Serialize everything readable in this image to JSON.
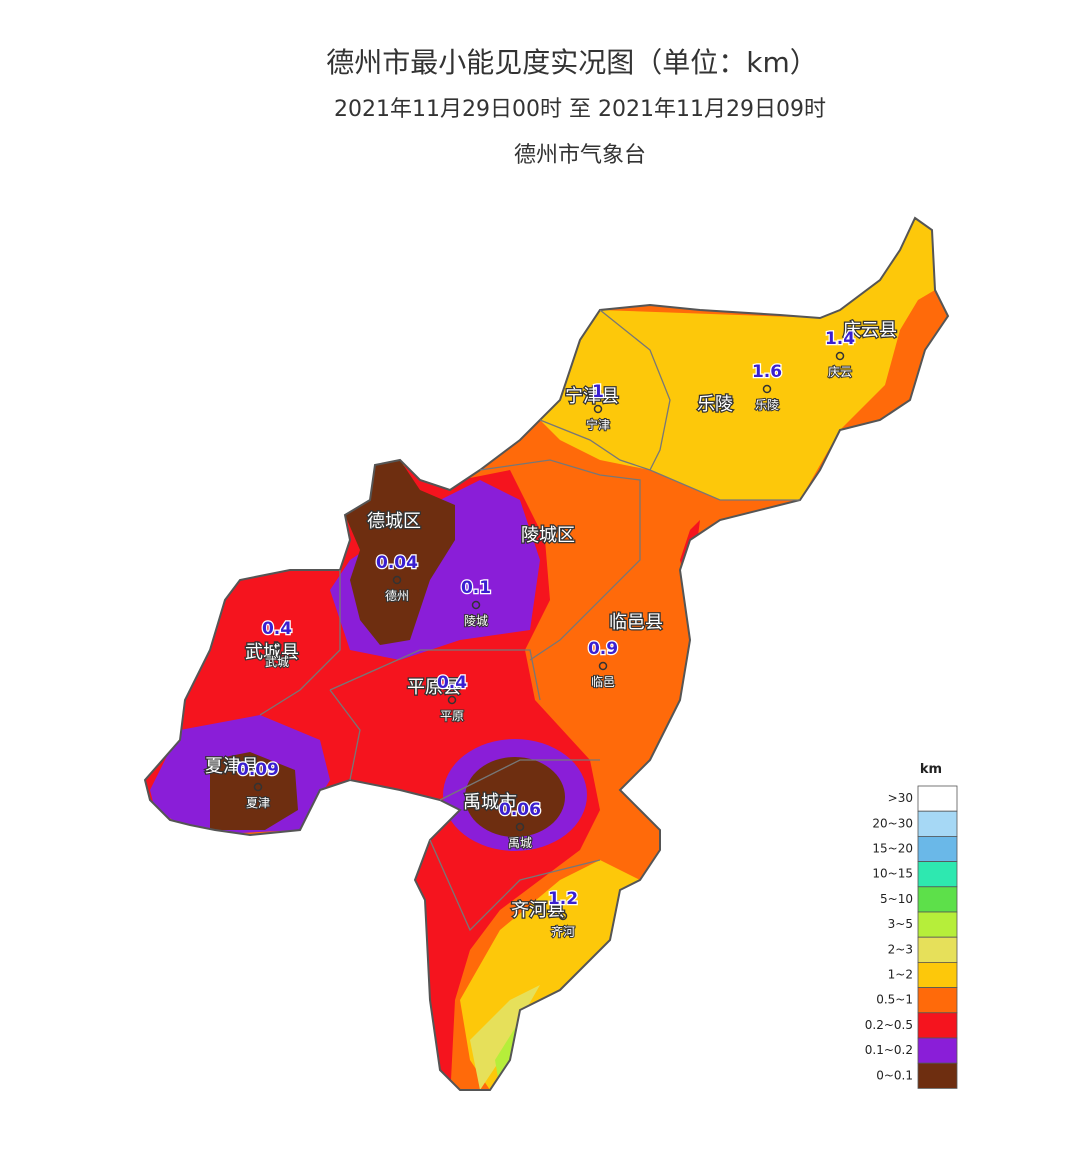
{
  "header": {
    "title": "德州市最小能见度实况图（单位：km）",
    "period": "2021年11月29日00时  至  2021年11月29日09时",
    "source": "德州市气象台"
  },
  "counties": [
    {
      "label": "庆云县"
    },
    {
      "label": "宁津县"
    },
    {
      "label": "乐陵"
    },
    {
      "label": "德城区"
    },
    {
      "label": "陵城区"
    },
    {
      "label": "临邑县"
    },
    {
      "label": "武城县"
    },
    {
      "label": "平原县"
    },
    {
      "label": "夏津县"
    },
    {
      "label": "禹城市"
    },
    {
      "label": "齐河县"
    }
  ],
  "stations": [
    {
      "name": "庆云",
      "value": 1.4
    },
    {
      "name": "乐陵",
      "value": 1.6
    },
    {
      "name": "宁津",
      "value": 1
    },
    {
      "name": "德州",
      "value": 0.04
    },
    {
      "name": "陵城",
      "value": 0.1
    },
    {
      "name": "临邑",
      "value": 0.9
    },
    {
      "name": "武城",
      "value": 0.4
    },
    {
      "name": "平原",
      "value": 0.4
    },
    {
      "name": "夏津",
      "value": 0.09
    },
    {
      "name": "禹城",
      "value": 0.06
    },
    {
      "name": "齐河",
      "value": 1.2
    }
  ],
  "legend": {
    "unit": "km",
    "items": [
      {
        "label": ">30",
        "color": "#ffffff"
      },
      {
        "label": "20~30",
        "color": "#a6d8f5"
      },
      {
        "label": "15~20",
        "color": "#6ab8e8"
      },
      {
        "label": "10~15",
        "color": "#2ee8b0"
      },
      {
        "label": "5~10",
        "color": "#5de04a"
      },
      {
        "label": "3~5",
        "color": "#b6ee3a"
      },
      {
        "label": "2~3",
        "color": "#e6e05a"
      },
      {
        "label": "1~2",
        "color": "#fdc80a"
      },
      {
        "label": "0.5~1",
        "color": "#ff6a0a"
      },
      {
        "label": "0.2~0.5",
        "color": "#f5141e"
      },
      {
        "label": "0.1~0.2",
        "color": "#8a1ed8"
      },
      {
        "label": "0~0.1",
        "color": "#6e2e10"
      }
    ]
  }
}
